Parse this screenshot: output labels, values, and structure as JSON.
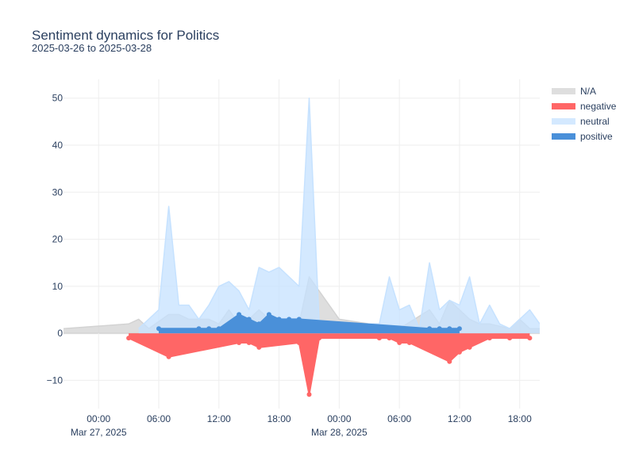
{
  "chart_data": {
    "type": "area",
    "title": "Sentiment dynamics for Politics",
    "subtitle": "2025-03-26 to 2025-03-28",
    "xlabel": "",
    "ylabel": "",
    "xlim": [
      "2025-03-26T20:30",
      "2025-03-28T20:00"
    ],
    "ylim": [
      -16,
      54
    ],
    "grid": true,
    "legend_position": "top-right",
    "x_ticks": [
      {
        "value": "2025-03-27T00:00",
        "label": "00:00",
        "label2": "Mar 27, 2025"
      },
      {
        "value": "2025-03-27T06:00",
        "label": "06:00"
      },
      {
        "value": "2025-03-27T12:00",
        "label": "12:00"
      },
      {
        "value": "2025-03-27T18:00",
        "label": "18:00"
      },
      {
        "value": "2025-03-28T00:00",
        "label": "00:00",
        "label2": "Mar 28, 2025"
      },
      {
        "value": "2025-03-28T06:00",
        "label": "06:00"
      },
      {
        "value": "2025-03-28T12:00",
        "label": "12:00"
      },
      {
        "value": "2025-03-28T18:00",
        "label": "18:00"
      }
    ],
    "y_ticks": [
      {
        "value": -10,
        "label": "−10"
      },
      {
        "value": 0,
        "label": "0"
      },
      {
        "value": 10,
        "label": "10"
      },
      {
        "value": 20,
        "label": "20"
      },
      {
        "value": 30,
        "label": "30"
      },
      {
        "value": 40,
        "label": "40"
      },
      {
        "value": 50,
        "label": "50"
      }
    ],
    "series": [
      {
        "name": "N/A",
        "color": "#d3d3d3",
        "markers": false,
        "points": [
          [
            "2025-03-26T20:30",
            1
          ],
          [
            "2025-03-27T03:00",
            2
          ],
          [
            "2025-03-27T04:00",
            3
          ],
          [
            "2025-03-27T05:00",
            1
          ],
          [
            "2025-03-27T07:00",
            4
          ],
          [
            "2025-03-27T08:00",
            4
          ],
          [
            "2025-03-27T09:00",
            3
          ],
          [
            "2025-03-27T10:00",
            3
          ],
          [
            "2025-03-27T11:00",
            3
          ],
          [
            "2025-03-27T12:00",
            2
          ],
          [
            "2025-03-27T13:00",
            5
          ],
          [
            "2025-03-27T14:00",
            2
          ],
          [
            "2025-03-27T15:00",
            3
          ],
          [
            "2025-03-27T16:00",
            5
          ],
          [
            "2025-03-27T17:00",
            3
          ],
          [
            "2025-03-27T18:00",
            2
          ],
          [
            "2025-03-27T19:00",
            1
          ],
          [
            "2025-03-27T20:00",
            2
          ],
          [
            "2025-03-27T21:00",
            12
          ],
          [
            "2025-03-28T00:00",
            3
          ],
          [
            "2025-03-28T06:00",
            1
          ],
          [
            "2025-03-28T09:00",
            5
          ],
          [
            "2025-03-28T10:00",
            2
          ],
          [
            "2025-03-28T11:00",
            7
          ],
          [
            "2025-03-28T12:00",
            5
          ],
          [
            "2025-03-28T13:00",
            3
          ],
          [
            "2025-03-28T14:00",
            2
          ],
          [
            "2025-03-28T15:00",
            2
          ],
          [
            "2025-03-28T17:00",
            1
          ],
          [
            "2025-03-28T18:00",
            3
          ],
          [
            "2025-03-28T19:00",
            1
          ],
          [
            "2025-03-28T20:00",
            1
          ]
        ]
      },
      {
        "name": "negative",
        "color": "#ff6666",
        "markers": true,
        "points": [
          [
            "2025-03-27T03:00",
            -1
          ],
          [
            "2025-03-27T07:00",
            -5
          ],
          [
            "2025-03-27T14:00",
            -2
          ],
          [
            "2025-03-27T15:00",
            -2
          ],
          [
            "2025-03-27T16:00",
            -3
          ],
          [
            "2025-03-27T20:00",
            -2
          ],
          [
            "2025-03-27T21:00",
            -13
          ],
          [
            "2025-03-27T22:00",
            -1
          ],
          [
            "2025-03-28T04:00",
            -1
          ],
          [
            "2025-03-28T05:00",
            -1
          ],
          [
            "2025-03-28T06:00",
            -2
          ],
          [
            "2025-03-28T07:00",
            -2
          ],
          [
            "2025-03-28T11:00",
            -6
          ],
          [
            "2025-03-28T12:00",
            -4
          ],
          [
            "2025-03-28T13:00",
            -3
          ],
          [
            "2025-03-28T15:00",
            -1
          ],
          [
            "2025-03-28T17:00",
            -1
          ],
          [
            "2025-03-28T19:00",
            -1
          ]
        ]
      },
      {
        "name": "neutral",
        "color": "#c6e2ff",
        "markers": false,
        "points": [
          [
            "2025-03-27T04:00",
            1
          ],
          [
            "2025-03-27T06:00",
            5
          ],
          [
            "2025-03-27T07:00",
            27
          ],
          [
            "2025-03-27T08:00",
            6
          ],
          [
            "2025-03-27T09:00",
            6
          ],
          [
            "2025-03-27T10:00",
            3
          ],
          [
            "2025-03-27T11:00",
            6
          ],
          [
            "2025-03-27T12:00",
            10
          ],
          [
            "2025-03-27T13:00",
            11
          ],
          [
            "2025-03-27T14:00",
            9
          ],
          [
            "2025-03-27T15:00",
            5
          ],
          [
            "2025-03-27T16:00",
            14
          ],
          [
            "2025-03-27T17:00",
            13
          ],
          [
            "2025-03-27T18:00",
            14
          ],
          [
            "2025-03-27T19:00",
            12
          ],
          [
            "2025-03-27T20:00",
            10
          ],
          [
            "2025-03-27T21:00",
            50
          ],
          [
            "2025-03-27T22:00",
            2
          ],
          [
            "2025-03-28T04:00",
            2
          ],
          [
            "2025-03-28T05:00",
            12
          ],
          [
            "2025-03-28T06:00",
            5
          ],
          [
            "2025-03-28T07:00",
            6
          ],
          [
            "2025-03-28T08:00",
            1
          ],
          [
            "2025-03-28T09:00",
            15
          ],
          [
            "2025-03-28T10:00",
            5
          ],
          [
            "2025-03-28T11:00",
            7
          ],
          [
            "2025-03-28T12:00",
            6
          ],
          [
            "2025-03-28T13:00",
            12
          ],
          [
            "2025-03-28T14:00",
            2
          ],
          [
            "2025-03-28T15:00",
            6
          ],
          [
            "2025-03-28T16:00",
            2
          ],
          [
            "2025-03-28T17:00",
            1
          ],
          [
            "2025-03-28T18:00",
            3
          ],
          [
            "2025-03-28T19:00",
            5
          ],
          [
            "2025-03-28T20:00",
            2
          ]
        ]
      },
      {
        "name": "positive",
        "color": "#4a90d9",
        "markers": true,
        "points": [
          [
            "2025-03-27T06:00",
            1
          ],
          [
            "2025-03-27T10:00",
            1
          ],
          [
            "2025-03-27T11:00",
            1
          ],
          [
            "2025-03-27T12:00",
            1
          ],
          [
            "2025-03-27T14:00",
            4
          ],
          [
            "2025-03-27T15:00",
            3
          ],
          [
            "2025-03-27T16:00",
            2
          ],
          [
            "2025-03-27T17:00",
            4
          ],
          [
            "2025-03-27T18:00",
            3
          ],
          [
            "2025-03-27T19:00",
            3
          ],
          [
            "2025-03-27T20:00",
            3
          ],
          [
            "2025-03-28T09:00",
            1
          ],
          [
            "2025-03-28T10:00",
            1
          ],
          [
            "2025-03-28T11:00",
            1
          ],
          [
            "2025-03-28T12:00",
            1
          ]
        ]
      }
    ]
  }
}
